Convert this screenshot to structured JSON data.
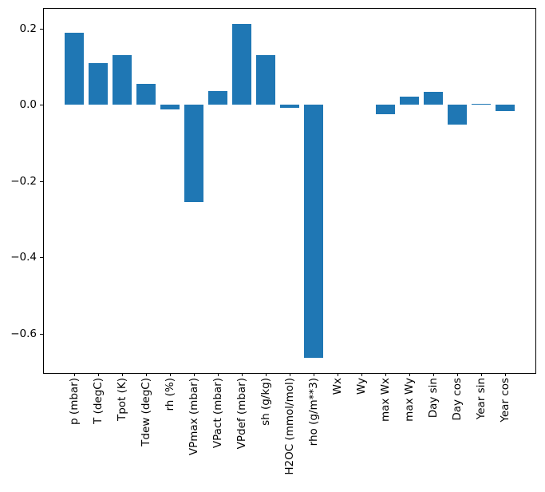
{
  "colors": {
    "bar": "#1f77b4",
    "axis": "#000000",
    "text": "#000000",
    "background": "#ffffff"
  },
  "chart_data": {
    "type": "bar",
    "title": "",
    "xlabel": "",
    "ylabel": "",
    "categories": [
      "p (mbar)",
      "T (degC)",
      "Tpot (K)",
      "Tdew (degC)",
      "rh (%)",
      "VPmax (mbar)",
      "VPact (mbar)",
      "VPdef (mbar)",
      "sh (g/kg)",
      "H2OC (mmol/mol)",
      "rho (g/m**3)",
      "Wx",
      "Wy",
      "max Wx",
      "max Wy",
      "Day sin",
      "Day cos",
      "Year sin",
      "Year cos"
    ],
    "values": [
      0.19,
      0.11,
      0.13,
      0.056,
      -0.012,
      -0.254,
      0.037,
      0.212,
      0.132,
      -0.007,
      -0.664,
      0.0,
      0.0,
      -0.025,
      0.023,
      0.035,
      -0.052,
      0.003,
      -0.015
    ],
    "bar_color": "#1f77b4",
    "ylim": [
      -0.7035,
      0.2526
    ],
    "yticks": {
      "values": [
        0.2,
        0.0,
        -0.2,
        -0.4,
        -0.6
      ],
      "labels": [
        "0.2",
        "0.0",
        "−0.2",
        "−0.4",
        "−0.6"
      ]
    },
    "grid": false,
    "legend": "none",
    "x_tick_rotation_deg": 90
  }
}
